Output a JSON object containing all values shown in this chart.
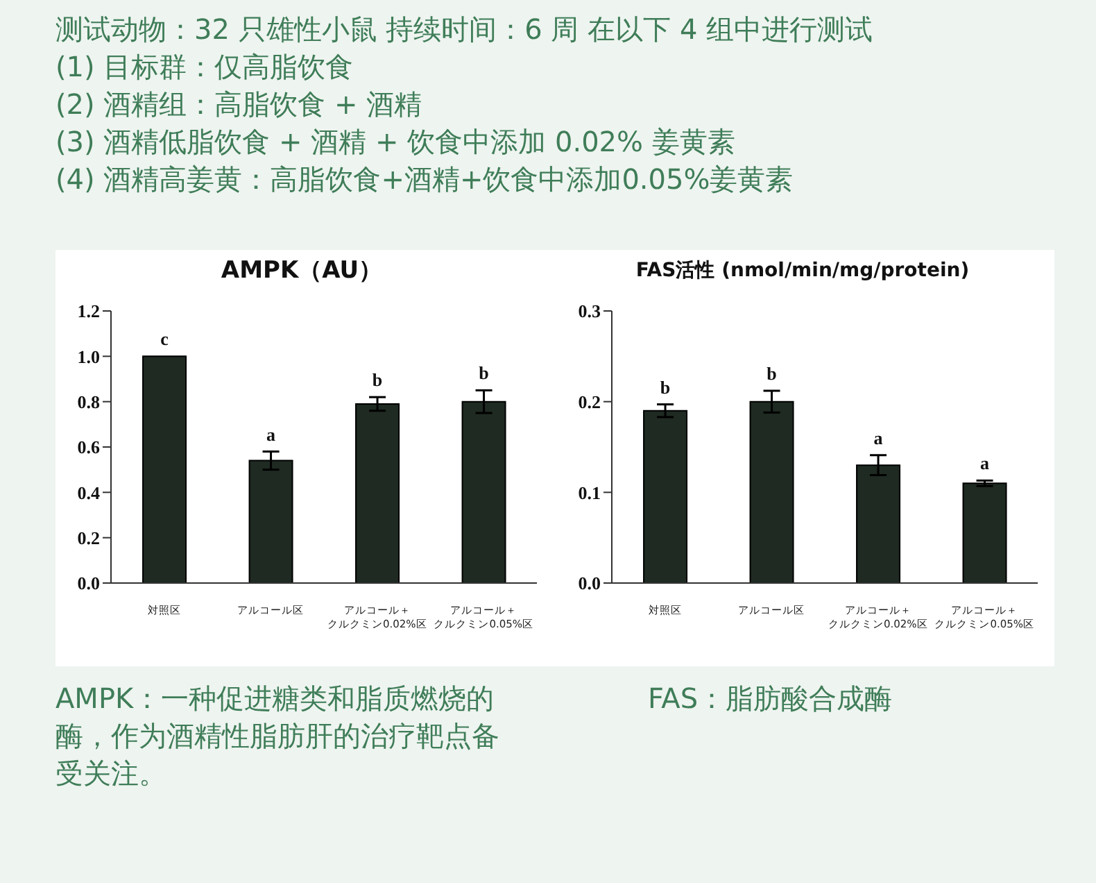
{
  "chart_data": [
    {
      "type": "bar",
      "title": "AMPK（AU）",
      "categories": [
        "対照区",
        "アルコール区",
        "アルコール＋クルクミン0.02%区",
        "アルコール＋クルクミン0.05%区"
      ],
      "values": [
        1.0,
        0.54,
        0.79,
        0.8
      ],
      "errors": [
        null,
        0.04,
        0.03,
        0.05
      ],
      "value_labels": [
        "c",
        "a",
        "b",
        "b"
      ],
      "color": "#1e2a22",
      "ylim": [
        0,
        1.2
      ],
      "yticks": [
        {
          "value": 0,
          "label": "0.0"
        },
        {
          "value": 0.2,
          "label": "0.2"
        },
        {
          "value": 0.4,
          "label": "0.4"
        },
        {
          "value": 0.6,
          "label": "0.6"
        },
        {
          "value": 0.8,
          "label": "0.8"
        },
        {
          "value": 1.0,
          "label": "1.0"
        },
        {
          "value": 1.2,
          "label": "1.2"
        }
      ],
      "grid": false,
      "legend": false,
      "annotations": [
        "测试动物：32 只雄性小鼠 持续时间：6 周 在以下 4 组中进行测试\n(1) 目标群：仅高脂饮食\n(2) 酒精组：高脂饮食 + 酒精\n(3) 酒精低脂饮食 + 酒精 + 饮食中添加 0.02% 姜黄素\n(4) 酒精高姜黄：高脂饮食+酒精+饮食中添加0.05%姜黄素",
        "AMPK：一种促进糖类和脂质燃烧的酶，作为酒精性脂肪肝的治疗靶点备受关注。"
      ]
    },
    {
      "type": "bar",
      "title": "FAS活性 (nmol/min/mg/protein)",
      "categories": [
        "対照区",
        "アルコール区",
        "アルコール＋クルクミン0.02%区",
        "アルコール＋クルクミン0.05%区"
      ],
      "values": [
        0.19,
        0.2,
        0.13,
        0.11
      ],
      "errors": [
        0.007,
        0.012,
        0.011,
        0.003
      ],
      "value_labels": [
        "b",
        "b",
        "a",
        "a"
      ],
      "color": "#1e2a22",
      "ylim": [
        0,
        0.3
      ],
      "yticks": [
        {
          "value": 0,
          "label": "0.0"
        },
        0.1,
        0.2,
        0.3
      ],
      "grid": false,
      "legend": false,
      "annotations": [
        "FAS：脂肪酸合成酶"
      ]
    }
  ]
}
